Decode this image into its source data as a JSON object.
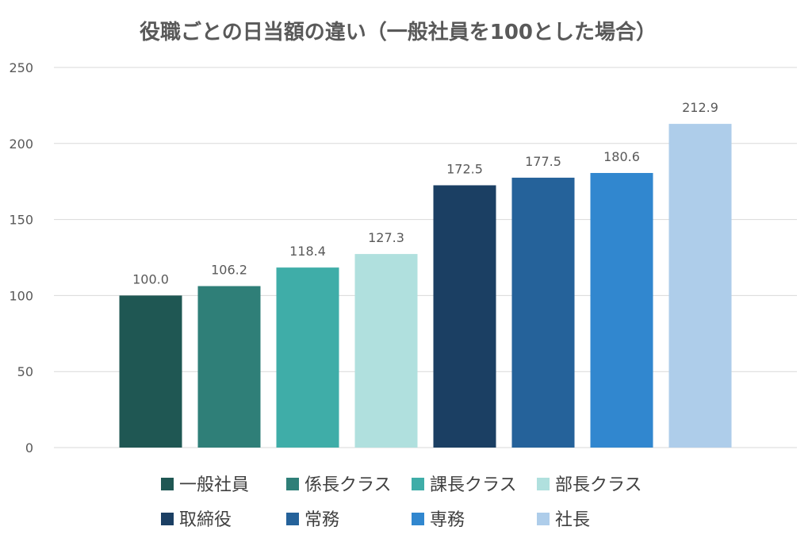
{
  "chart_data": {
    "type": "bar",
    "title": "役職ごとの日当額の違い（一般社員を100とした場合）",
    "xlabel": "",
    "ylabel": "",
    "ylim": [
      0,
      250
    ],
    "yticks": [
      0,
      50,
      100,
      150,
      200,
      250
    ],
    "grid": true,
    "legend_position": "bottom",
    "categories": [
      "一般社員",
      "係長クラス",
      "課長クラス",
      "部長クラス",
      "取締役",
      "常務",
      "専務",
      "社長"
    ],
    "values": [
      100.0,
      106.2,
      118.4,
      127.3,
      172.5,
      177.5,
      180.6,
      212.9
    ],
    "value_labels": [
      "100.0",
      "106.2",
      "118.4",
      "127.3",
      "172.5",
      "177.5",
      "180.6",
      "212.9"
    ],
    "colors": [
      "#1f5753",
      "#2f7f78",
      "#3fada8",
      "#b0e0de",
      "#1b3f63",
      "#25629a",
      "#3187cf",
      "#aecdea"
    ]
  }
}
